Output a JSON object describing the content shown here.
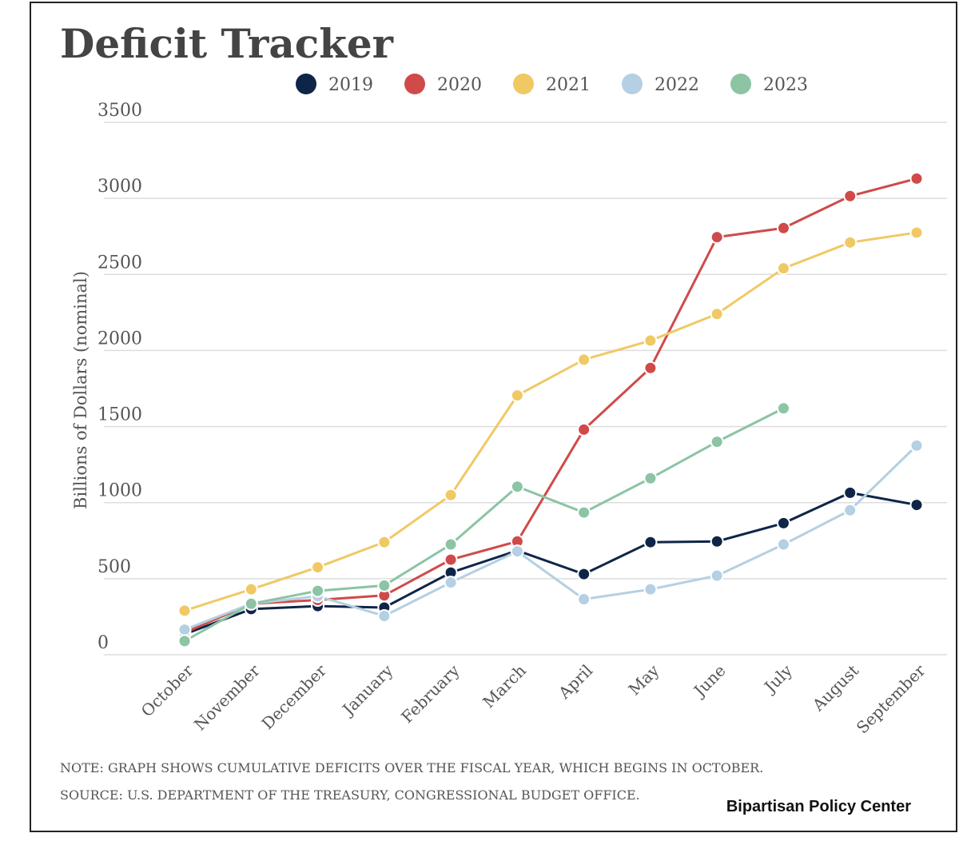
{
  "chart_data": {
    "type": "line",
    "title": "Deficit Tracker",
    "y_label": "Billions of Dollars (nominal)",
    "note": "NOTE: GRAPH SHOWS CUMULATIVE DEFICITS OVER THE FISCAL YEAR, WHICH BEGINS IN OCTOBER.",
    "source": "SOURCE: U.S. DEPARTMENT OF THE TREASURY, CONGRESSIONAL BUDGET OFFICE.",
    "credit": "Bipartisan Policy Center",
    "categories": [
      "October",
      "November",
      "December",
      "January",
      "February",
      "March",
      "April",
      "May",
      "June",
      "July",
      "August",
      "September"
    ],
    "ylim": [
      0,
      3500
    ],
    "yticks": [
      0,
      500,
      1000,
      1500,
      2000,
      2500,
      3000,
      3500
    ],
    "grid": true,
    "legend": "top",
    "series": [
      {
        "name": "2019",
        "color": "#0f2548",
        "values": [
          135,
          300,
          320,
          310,
          540,
          685,
          530,
          740,
          745,
          865,
          1065,
          985
        ]
      },
      {
        "name": "2020",
        "color": "#d04a4a",
        "values": [
          145,
          335,
          360,
          390,
          625,
          745,
          1480,
          1885,
          2745,
          2805,
          3015,
          3130
        ]
      },
      {
        "name": "2021",
        "color": "#f0c965",
        "values": [
          290,
          430,
          575,
          740,
          1050,
          1705,
          1940,
          2065,
          2240,
          2540,
          2710,
          2775
        ]
      },
      {
        "name": "2022",
        "color": "#b4d0e2",
        "values": [
          165,
          335,
          385,
          255,
          475,
          680,
          365,
          430,
          520,
          725,
          950,
          1375
        ]
      },
      {
        "name": "2023",
        "color": "#8cc4a4",
        "values": [
          90,
          335,
          420,
          455,
          725,
          1105,
          935,
          1160,
          1400,
          1620,
          null,
          null
        ]
      }
    ]
  }
}
